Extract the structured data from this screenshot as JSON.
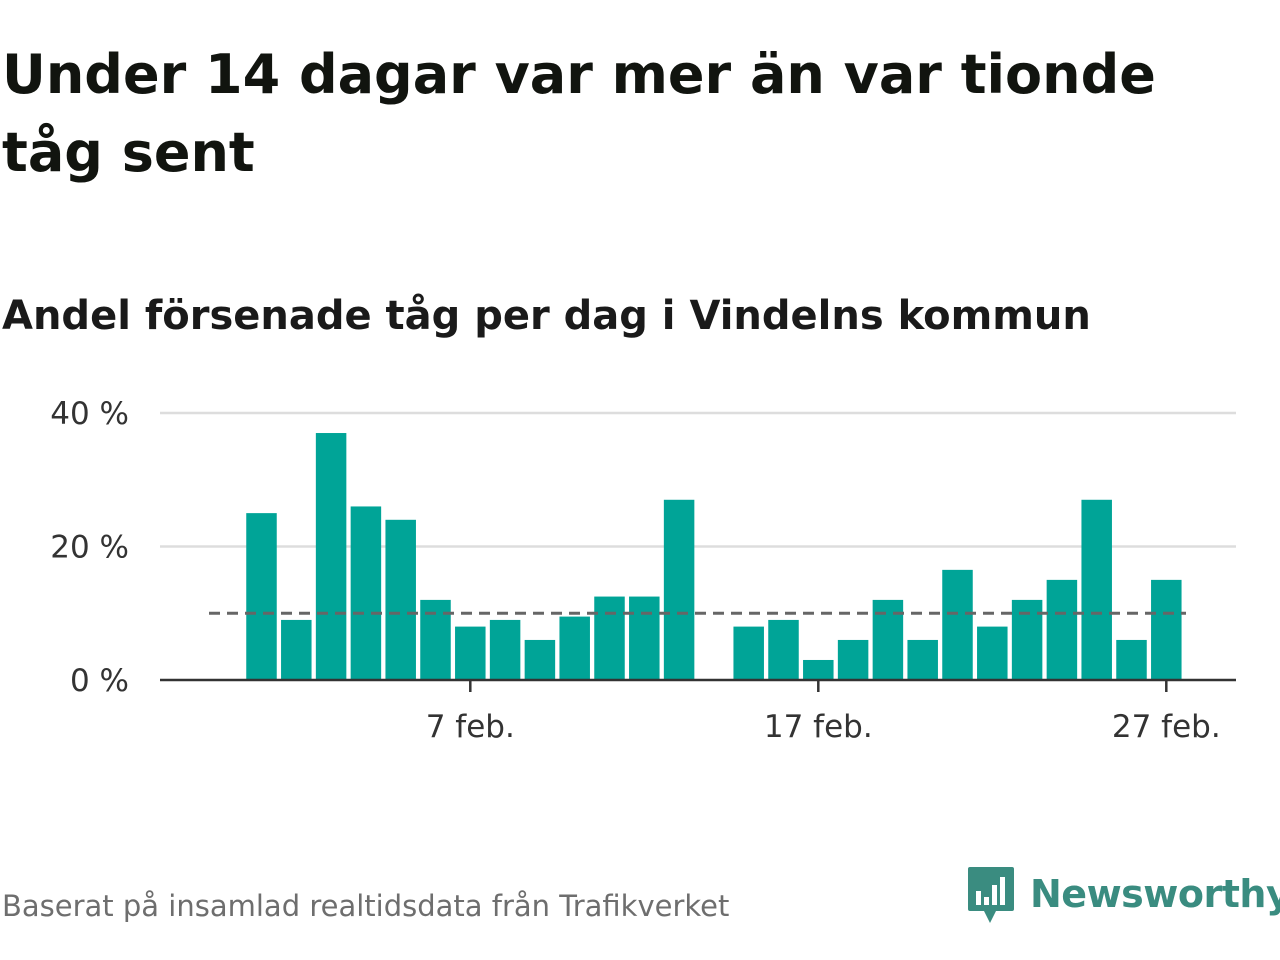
{
  "title": "Under 14 dagar var mer än var tionde tåg sent",
  "subtitle": "Andel försenade tåg per dag i Vindelns kommun",
  "source": "Baserat på insamlad realtidsdata från Trafikverket",
  "brand": "Newsworthy",
  "colors": {
    "bar": "#00a497",
    "reference_line": "#666666",
    "grid": "#dddddd",
    "axis": "#333333",
    "brand": "#3a8c80"
  },
  "chart_data": {
    "type": "bar",
    "x": [
      1,
      2,
      3,
      4,
      5,
      6,
      7,
      8,
      9,
      10,
      11,
      12,
      13,
      14,
      15,
      16,
      17,
      18,
      19,
      20,
      21,
      22,
      23,
      24,
      25,
      26,
      27,
      28
    ],
    "values": [
      25,
      9,
      37,
      26,
      24,
      12,
      8,
      9,
      6,
      9.5,
      12.5,
      12.5,
      27,
      null,
      8,
      9,
      3,
      6,
      12,
      6,
      16.5,
      8,
      12,
      15,
      27,
      6,
      15,
      null
    ],
    "ylim": [
      0,
      40
    ],
    "y_ticks": [
      0,
      20,
      40
    ],
    "y_tick_labels": [
      "0 %",
      "20 %",
      "40 %"
    ],
    "x_tick_positions": [
      7,
      17,
      27
    ],
    "x_tick_labels": [
      "7 feb.",
      "17 feb.",
      "27 feb."
    ],
    "reference_line": 10,
    "grid": true,
    "xlabel": "",
    "ylabel": ""
  }
}
